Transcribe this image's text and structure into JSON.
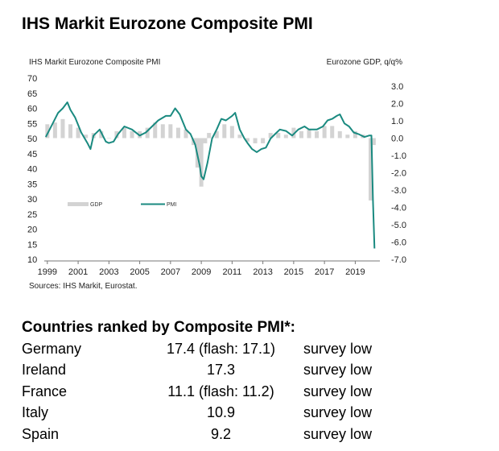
{
  "title": "IHS Markit Eurozone Composite PMI",
  "chart_data": {
    "type": "line",
    "inner_title_left": "IHS Markit Eurozone Composite PMI",
    "inner_title_right": "Eurozone GDP, q/q%",
    "x_ticks": [
      "1999",
      "2001",
      "2003",
      "2005",
      "2007",
      "2009",
      "2011",
      "2013",
      "2015",
      "2017",
      "2019"
    ],
    "xlim": [
      1998.8,
      2020.6
    ],
    "left_axis": {
      "ticks": [
        "70",
        "65",
        "60",
        "55",
        "50",
        "45",
        "40",
        "35",
        "30",
        "25",
        "20",
        "15",
        "10"
      ],
      "ylim": [
        10,
        70
      ]
    },
    "right_axis": {
      "ticks": [
        "3.0",
        "2.0",
        "1.0",
        "0.0",
        "-1.0",
        "-2.0",
        "-3.0",
        "-4.0",
        "-5.0",
        "-6.0",
        "-7.0"
      ],
      "ylim": [
        -7,
        3
      ]
    },
    "legend": [
      "GDP",
      "PMI"
    ],
    "grid": false,
    "colors": {
      "pmi": "#1a8a80",
      "gdp": "#d3d3d3"
    },
    "series": [
      {
        "name": "PMI",
        "axis": "left",
        "x": [
          1998.9,
          1999.3,
          1999.7,
          2000.0,
          2000.3,
          2000.5,
          2000.8,
          2001.2,
          2001.6,
          2001.8,
          2002.0,
          2002.4,
          2002.8,
          2003.0,
          2003.3,
          2003.6,
          2004.0,
          2004.5,
          2005.0,
          2005.4,
          2005.8,
          2006.2,
          2006.7,
          2007.0,
          2007.3,
          2007.6,
          2008.0,
          2008.3,
          2008.6,
          2008.9,
          2009.0,
          2009.15,
          2009.4,
          2009.7,
          2010.0,
          2010.3,
          2010.6,
          2011.0,
          2011.2,
          2011.5,
          2011.8,
          2012.0,
          2012.3,
          2012.6,
          2012.9,
          2013.2,
          2013.5,
          2013.8,
          2014.1,
          2014.5,
          2014.9,
          2015.3,
          2015.7,
          2016.0,
          2016.5,
          2016.9,
          2017.2,
          2017.5,
          2017.8,
          2018.0,
          2018.3,
          2018.6,
          2018.9,
          2019.2,
          2019.6,
          2019.9,
          2020.05,
          2020.15,
          2020.25
        ],
        "values": [
          50.5,
          54.5,
          58.5,
          60.0,
          62.0,
          59.5,
          57.0,
          52.0,
          48.5,
          46.5,
          51.0,
          53.0,
          49.0,
          48.5,
          49.0,
          51.5,
          54.0,
          53.0,
          51.0,
          52.0,
          54.0,
          56.0,
          57.5,
          57.5,
          60.0,
          58.0,
          53.0,
          51.5,
          48.0,
          41.0,
          37.5,
          36.5,
          42.0,
          50.0,
          53.0,
          56.5,
          56.0,
          57.5,
          58.5,
          53.0,
          50.0,
          48.5,
          46.5,
          45.5,
          46.5,
          47.0,
          50.0,
          51.5,
          53.0,
          52.5,
          51.0,
          53.0,
          54.0,
          53.0,
          53.0,
          54.0,
          56.0,
          56.5,
          57.5,
          58.0,
          55.0,
          54.0,
          52.0,
          51.5,
          50.5,
          51.0,
          51.0,
          29.5,
          13.6
        ]
      },
      {
        "name": "GDP",
        "axis": "right",
        "type": "bar",
        "x": [
          1999.0,
          1999.5,
          2000.0,
          2000.5,
          2001.0,
          2001.5,
          2002.0,
          2002.5,
          2003.0,
          2003.5,
          2004.0,
          2004.5,
          2005.0,
          2005.5,
          2006.0,
          2006.5,
          2007.0,
          2007.5,
          2008.0,
          2008.5,
          2008.75,
          2009.0,
          2009.25,
          2009.5,
          2010.0,
          2010.5,
          2011.0,
          2011.5,
          2012.0,
          2012.5,
          2013.0,
          2013.5,
          2014.0,
          2014.5,
          2015.0,
          2015.5,
          2016.0,
          2016.5,
          2017.0,
          2017.5,
          2018.0,
          2018.5,
          2019.0,
          2019.5,
          2020.0,
          2020.2
        ],
        "values": [
          0.8,
          0.9,
          1.1,
          0.8,
          0.6,
          0.2,
          0.3,
          0.4,
          0.0,
          0.4,
          0.6,
          0.4,
          0.4,
          0.6,
          0.9,
          0.8,
          0.8,
          0.6,
          0.5,
          -0.4,
          -1.7,
          -2.8,
          -0.3,
          0.3,
          0.4,
          0.8,
          0.7,
          0.2,
          -0.2,
          -0.3,
          -0.3,
          0.3,
          0.3,
          0.2,
          0.6,
          0.4,
          0.5,
          0.4,
          0.7,
          0.7,
          0.4,
          0.2,
          0.4,
          0.2,
          -3.6,
          -0.4
        ]
      }
    ]
  },
  "source": "Sources: IHS Markit, Eurostat.",
  "rankings": {
    "title": "Countries ranked by Composite PMI*:",
    "rows": [
      {
        "country": "Germany",
        "value": "17.4  (flash: 17.1)",
        "note": "survey low"
      },
      {
        "country": "Ireland",
        "value": "17.3",
        "note": "survey low"
      },
      {
        "country": "France",
        "value": "11.1 (flash: 11.2)",
        "note": "survey low"
      },
      {
        "country": "Italy",
        "value": "10.9",
        "note": "survey low"
      },
      {
        "country": "Spain",
        "value": "9.2",
        "note": "survey low"
      }
    ]
  }
}
